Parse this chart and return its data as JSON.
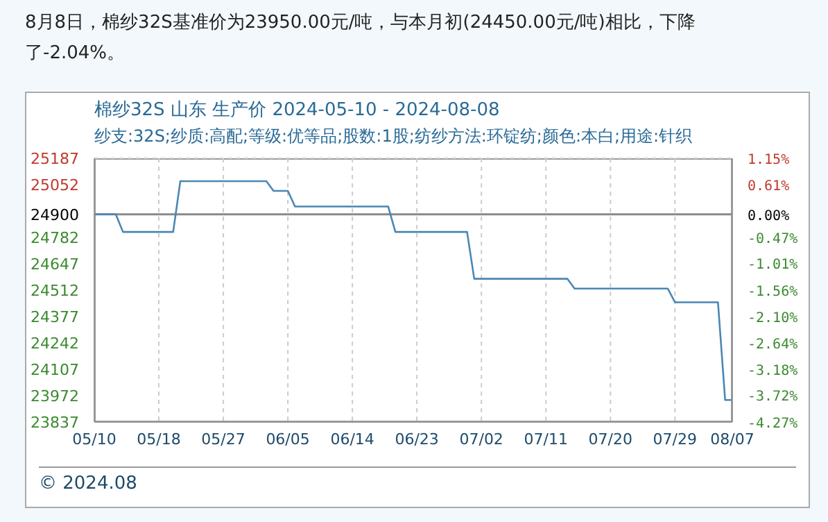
{
  "chart_data": {
    "type": "line",
    "title": "棉纱32S 山东 生产价 2024-05-10 - 2024-08-08",
    "subtitle": "纱支:32S;纱质:高配;等级:优等品;股数:1股;纺纱方法:环锭纺;颜色:本白;用途:针织",
    "annotations": [
      "8月8日，棉纱32S基准价为23950.00元/吨，与本月初(24450.00元/吨)相比，下降了-2.04%。",
      "© 2024.08"
    ],
    "x": [
      "2024-05-10",
      "2024-05-13",
      "2024-05-14",
      "2024-05-21",
      "2024-05-22",
      "2024-06-03",
      "2024-06-04",
      "2024-06-06",
      "2024-06-07",
      "2024-06-20",
      "2024-06-21",
      "2024-07-01",
      "2024-07-02",
      "2024-07-15",
      "2024-07-16",
      "2024-07-29",
      "2024-07-30",
      "2024-08-05",
      "2024-08-06",
      "2024-08-07"
    ],
    "series": [
      {
        "color": "#4a87b3",
        "values": [
          24900,
          24900,
          24810,
          24810,
          25070,
          25070,
          25020,
          25020,
          24940,
          24940,
          24810,
          24810,
          24570,
          24570,
          24520,
          24520,
          24450,
          24450,
          23950,
          23950
        ]
      }
    ],
    "xlim": [
      "2024-05-10",
      "2024-08-07"
    ],
    "xticks": [
      {
        "value": "2024-05-10",
        "label": "05/10"
      },
      {
        "value": "2024-05-19",
        "label": "05/18"
      },
      {
        "value": "2024-05-28",
        "label": "05/27"
      },
      {
        "value": "2024-06-06",
        "label": "06/05"
      },
      {
        "value": "2024-06-15",
        "label": "06/14"
      },
      {
        "value": "2024-06-24",
        "label": "06/23"
      },
      {
        "value": "2024-07-03",
        "label": "07/02"
      },
      {
        "value": "2024-07-12",
        "label": "07/11"
      },
      {
        "value": "2024-07-21",
        "label": "07/20"
      },
      {
        "value": "2024-07-30",
        "label": "07/29"
      },
      {
        "value": "2024-08-07",
        "label": "08/07"
      }
    ],
    "ylim": [
      23837,
      25187
    ],
    "yticks": [
      25187,
      25052,
      24900,
      24782,
      24647,
      24512,
      24377,
      24242,
      24107,
      23972,
      23837
    ],
    "y2lim": [
      -4.27,
      1.15
    ],
    "y2ticks": [
      {
        "value": 1.15,
        "label": "1.15%"
      },
      {
        "value": 0.61,
        "label": "0.61%"
      },
      {
        "value": 0,
        "label": "0.00%"
      },
      {
        "value": -0.47,
        "label": "-0.47%"
      },
      {
        "value": -1.01,
        "label": "-1.01%"
      },
      {
        "value": -1.56,
        "label": "-1.56%"
      },
      {
        "value": -2.1,
        "label": "-2.10%"
      },
      {
        "value": -2.64,
        "label": "-2.64%"
      },
      {
        "value": -3.18,
        "label": "-3.18%"
      },
      {
        "value": -3.72,
        "label": "-3.72%"
      },
      {
        "value": -4.27,
        "label": "-4.27%"
      }
    ],
    "ref_lines": [
      {
        "axis": "y",
        "value": 24900,
        "color": "#8a8a8a"
      }
    ],
    "grid": true,
    "marker": "none",
    "line_style": "solid"
  }
}
